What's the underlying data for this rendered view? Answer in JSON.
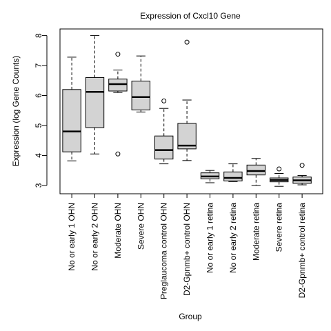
{
  "chart_data": {
    "type": "box",
    "title": "Expression of  Cxcl10 Gene",
    "xlabel": "Group",
    "ylabel": "Expression (log Gene Counts)",
    "ylim": [
      2.75,
      8.25
    ],
    "yticks": [
      3,
      4,
      5,
      6,
      7,
      8
    ],
    "grid": false,
    "box_color": "#d3d3d3",
    "categories": [
      "No or early 1 OHN",
      "No or early 2 OHN",
      "Moderate OHN",
      "Severe OHN",
      "Preglaucoma control OHN",
      "D2-Gpnmb+ control OHN",
      "No or early 1 retina",
      "No or early 2 retina",
      "Moderate retina",
      "Severe retina",
      "D2-Gpnmb+ control retina"
    ],
    "boxes": [
      {
        "min": 3.82,
        "q1": 4.12,
        "median": 4.8,
        "q3": 6.2,
        "max": 7.28,
        "outliers": []
      },
      {
        "min": 4.05,
        "q1": 4.93,
        "median": 6.12,
        "q3": 6.6,
        "max": 8.0,
        "outliers": []
      },
      {
        "min": 6.1,
        "q1": 6.15,
        "median": 6.38,
        "q3": 6.55,
        "max": 6.85,
        "outliers": [
          7.38,
          4.05
        ]
      },
      {
        "min": 5.45,
        "q1": 5.52,
        "median": 5.95,
        "q3": 6.48,
        "max": 7.32,
        "outliers": []
      },
      {
        "min": 3.72,
        "q1": 3.88,
        "median": 4.18,
        "q3": 4.65,
        "max": 5.57,
        "outliers": [
          5.82
        ]
      },
      {
        "min": 3.83,
        "q1": 4.22,
        "median": 4.33,
        "q3": 5.07,
        "max": 5.85,
        "outliers": [
          7.78
        ]
      },
      {
        "min": 3.09,
        "q1": 3.22,
        "median": 3.3,
        "q3": 3.42,
        "max": 3.5,
        "outliers": []
      },
      {
        "min": 3.13,
        "q1": 3.15,
        "median": 3.25,
        "q3": 3.45,
        "max": 3.72,
        "outliers": []
      },
      {
        "min": 3.0,
        "q1": 3.35,
        "median": 3.48,
        "q3": 3.68,
        "max": 3.9,
        "outliers": []
      },
      {
        "min": 2.97,
        "q1": 3.12,
        "median": 3.18,
        "q3": 3.25,
        "max": 3.4,
        "outliers": [
          3.55
        ]
      },
      {
        "min": 3.02,
        "q1": 3.07,
        "median": 3.17,
        "q3": 3.28,
        "max": 3.33,
        "outliers": [
          3.67
        ]
      }
    ]
  }
}
